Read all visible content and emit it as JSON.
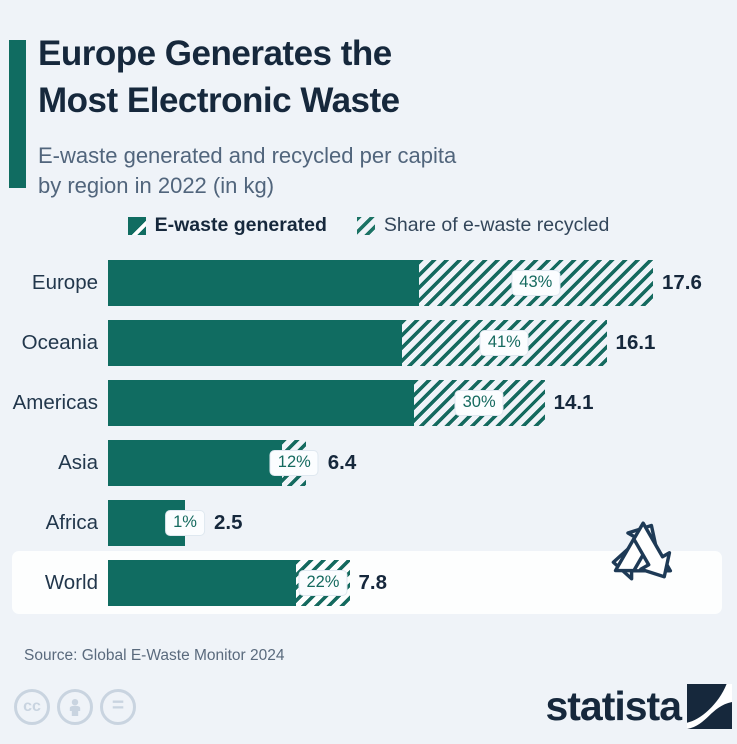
{
  "header": {
    "title_line1": "Europe Generates the",
    "title_line2": "Most Electronic Waste",
    "subtitle_line1": "E-waste generated and recycled per capita",
    "subtitle_line2": "by region in 2022 (in kg)"
  },
  "legend": {
    "generated_label": "E-waste generated",
    "recycled_label": "Share of e-waste recycled"
  },
  "chart_data": {
    "type": "bar",
    "orientation": "horizontal",
    "title": "E-waste generated and recycled per capita by region in 2022 (in kg)",
    "categories": [
      "Europe",
      "Oceania",
      "Americas",
      "Asia",
      "Africa",
      "World"
    ],
    "series": [
      {
        "name": "E-waste generated (kg per capita)",
        "values": [
          17.6,
          16.1,
          14.1,
          6.4,
          2.5,
          7.8
        ]
      },
      {
        "name": "Share of e-waste recycled (%)",
        "values": [
          43,
          41,
          30,
          12,
          1,
          22
        ]
      }
    ],
    "value_labels": [
      "17.6",
      "16.1",
      "14.1",
      "6.4",
      "2.5",
      "7.8"
    ],
    "pct_labels": [
      "43%",
      "41%",
      "30%",
      "12%",
      "1%",
      "22%"
    ],
    "highlight_category": "World",
    "xlim": [
      0,
      17.6
    ],
    "grid": false,
    "legend_position": "top"
  },
  "colors": {
    "background": "#eff3f8",
    "bar_teal": "#106c61",
    "navy_text": "#16283c",
    "subtitle_gray": "#51657c",
    "pct_text": "#156a5f",
    "highlight_band": "#fdfefe",
    "cc_gray": "#c9d4e0"
  },
  "source": {
    "text": "Source: Global E-Waste Monitor 2024"
  },
  "footer": {
    "brand": "statista"
  }
}
